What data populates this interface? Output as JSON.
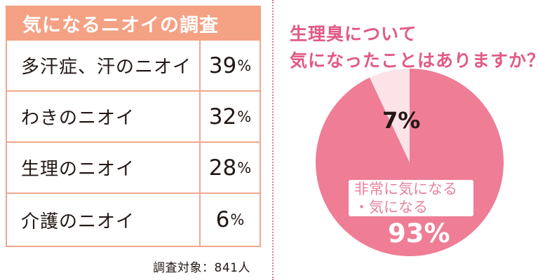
{
  "table": {
    "title": "気になるニオイの調査",
    "rows": [
      {
        "label": "多汗症、汗のニオイ",
        "value": "39",
        "unit": "%"
      },
      {
        "label": "わきのニオイ",
        "value": "32",
        "unit": "%"
      },
      {
        "label": "生理のニオイ",
        "value": "28",
        "unit": "%"
      },
      {
        "label": "介護のニオイ",
        "value": "6",
        "unit": "%"
      }
    ],
    "footnote": "調査対象：841人"
  },
  "chart_data": {
    "type": "pie",
    "title_lines": [
      "生理臭について",
      "気になったことはありますか？"
    ],
    "slices": [
      {
        "label_lines": [
          "非常に気になる",
          "・気になる"
        ],
        "value": 93,
        "value_label": "93%",
        "color": "#ee7d95"
      },
      {
        "label_lines": [],
        "value": 7,
        "value_label": "7%",
        "color": "#fbe3e8"
      }
    ]
  },
  "colors": {
    "table_header": "#f5a184",
    "table_border": "#f0a78d",
    "accent_pink": "#e15a83"
  }
}
